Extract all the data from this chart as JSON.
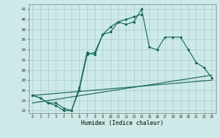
{
  "xlabel": "Humidex (Indice chaleur)",
  "x_ticks": [
    0,
    1,
    2,
    3,
    4,
    5,
    6,
    7,
    8,
    9,
    10,
    11,
    12,
    13,
    14,
    15,
    16,
    17,
    18,
    19,
    20,
    21,
    22,
    23
  ],
  "ylim": [
    21.5,
    43
  ],
  "xlim": [
    -0.5,
    23.5
  ],
  "yticks": [
    22,
    24,
    26,
    28,
    30,
    32,
    34,
    36,
    38,
    40,
    42
  ],
  "bg_color": "#ceeae8",
  "grid_color": "#aacfcd",
  "line_color": "#1a6b5a",
  "curve1_x": [
    0,
    1,
    2,
    3,
    4,
    5,
    6,
    7,
    8,
    9,
    10,
    11,
    12,
    13,
    14,
    15,
    16,
    17,
    18,
    19,
    20,
    21,
    22,
    23
  ],
  "curve1_y": [
    25.0,
    24.5,
    23.5,
    23.5,
    22.5,
    22.0,
    26.0,
    33.0,
    33.5,
    37.0,
    37.5,
    39.5,
    39.0,
    39.5,
    42.0,
    34.5,
    34.0,
    36.5,
    36.5,
    36.5,
    34.0,
    31.5,
    30.5,
    28.5
  ],
  "curve2_x": [
    0,
    1,
    2,
    3,
    4,
    5,
    6,
    7,
    8,
    9,
    10,
    11,
    12,
    13,
    14
  ],
  "curve2_y": [
    25.0,
    24.5,
    23.5,
    23.0,
    22.0,
    22.0,
    26.5,
    33.5,
    33.0,
    37.0,
    38.5,
    39.5,
    40.0,
    40.5,
    41.0
  ],
  "line3_x": [
    0,
    23
  ],
  "line3_y": [
    25.0,
    28.0
  ],
  "line4_x": [
    0,
    23
  ],
  "line4_y": [
    23.5,
    29.0
  ],
  "marker_style": "s",
  "marker_size": 2.0,
  "linewidth": 0.9
}
